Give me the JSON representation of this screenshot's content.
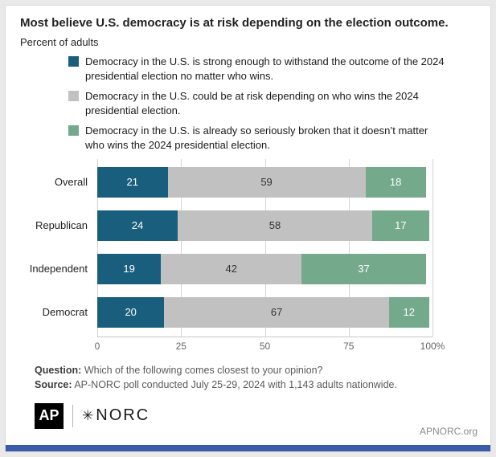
{
  "header": {
    "title": "Most believe U.S. democracy is at risk depending on the election outcome.",
    "subtitle": "Percent of adults"
  },
  "legend": [
    {
      "label": "Democracy in the U.S. is strong enough to withstand the outcome of the 2024 presidential election no matter who wins.",
      "color": "#1a5e7e"
    },
    {
      "label": "Democracy in the U.S. could be at risk depending on who wins the 2024 presidential election.",
      "color": "#c1c1c1"
    },
    {
      "label": "Democracy in the U.S. is already so seriously broken that it doesn’t matter who wins the 2024 presidential election.",
      "color": "#74a98c"
    }
  ],
  "chart_data": {
    "type": "bar",
    "orientation": "horizontal",
    "stacked": true,
    "categories": [
      "Overall",
      "Republican",
      "Independent",
      "Democrat"
    ],
    "series": [
      {
        "name": "Democracy is strong enough to withstand the outcome",
        "color": "#1a5e7e",
        "text_color": "#ffffff",
        "values": [
          21,
          24,
          19,
          20
        ]
      },
      {
        "name": "Democracy could be at risk depending on who wins",
        "color": "#c1c1c1",
        "text_color": "#333333",
        "values": [
          59,
          58,
          42,
          67
        ]
      },
      {
        "name": "Democracy is already so seriously broken",
        "color": "#74a98c",
        "text_color": "#ffffff",
        "values": [
          18,
          17,
          37,
          12
        ]
      }
    ],
    "x_ticks": [
      "0",
      "25",
      "50",
      "75",
      "100%"
    ],
    "x_tick_positions": [
      0,
      25,
      50,
      75,
      100
    ],
    "xlim": [
      0,
      100
    ],
    "grid": true,
    "legend_position": "top"
  },
  "notes": {
    "question_label": "Question:",
    "question_text": " Which of the following comes closest to your opinion?",
    "source_label": "Source:",
    "source_text": " AP-NORC poll conducted July 25-29, 2024 with 1,143 adults nationwide."
  },
  "footer": {
    "ap_logo": "AP",
    "norc_star": "✳",
    "norc_logo": "NORC",
    "site": "APNORC.org",
    "strip_color": "#3a5ca8"
  }
}
